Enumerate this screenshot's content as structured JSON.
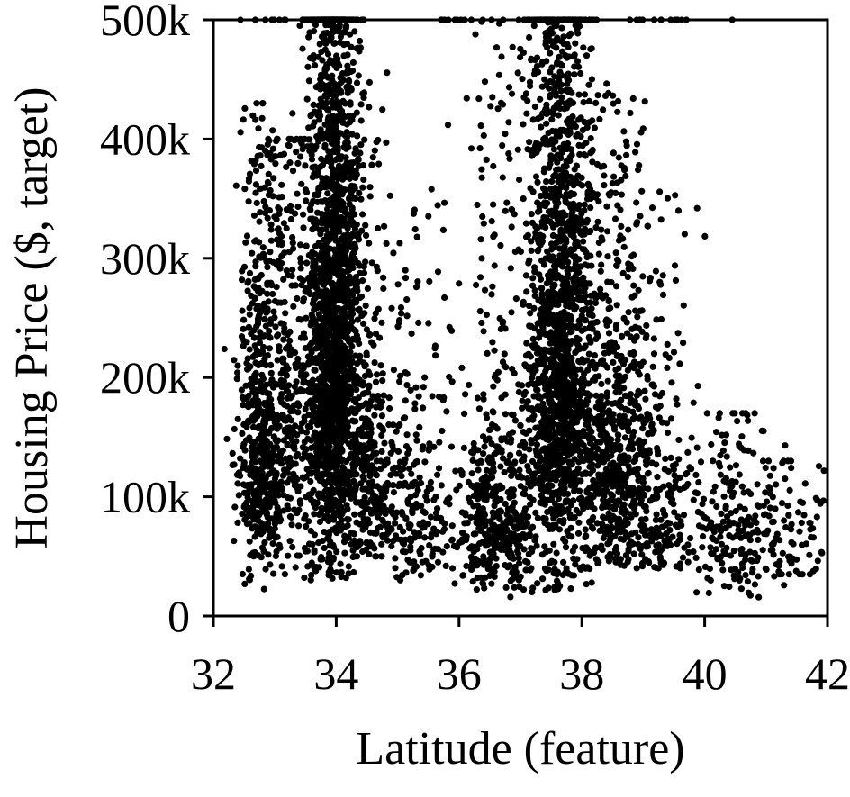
{
  "chart_data": {
    "type": "scatter",
    "title": "",
    "xlabel": "Latitude (feature)",
    "ylabel": "Housing Price ($, target)",
    "xlim": [
      32,
      42
    ],
    "ylim": [
      0,
      500000
    ],
    "x_ticks": [
      32,
      34,
      36,
      38,
      40,
      42
    ],
    "x_tick_labels": [
      "32",
      "34",
      "36",
      "38",
      "40",
      "42"
    ],
    "y_ticks": [
      0,
      100000,
      200000,
      300000,
      400000,
      500000
    ],
    "y_tick_labels": [
      "0",
      "100k",
      "200k",
      "300k",
      "400k",
      "500k"
    ],
    "grid": false,
    "legend": "none",
    "marker_color": "#000000",
    "series": [
      {
        "clusters": [
          {
            "lat_center": 32.75,
            "lat_spread": 0.18,
            "price_min": 20000,
            "price_max": 430000,
            "price_center": 150000,
            "points": 520
          },
          {
            "lat_center": 33.2,
            "lat_spread": 0.25,
            "price_min": 40000,
            "price_max": 400000,
            "price_center": 180000,
            "points": 360
          },
          {
            "lat_center": 33.95,
            "lat_spread": 0.22,
            "price_min": 30000,
            "price_max": 500000,
            "price_center": 250000,
            "points": 1900
          },
          {
            "lat_center": 34.5,
            "lat_spread": 0.2,
            "price_min": 50000,
            "price_max": 460000,
            "price_center": 130000,
            "points": 320
          },
          {
            "lat_center": 35.3,
            "lat_spread": 0.35,
            "price_min": 30000,
            "price_max": 360000,
            "price_center": 90000,
            "points": 260
          },
          {
            "lat_center": 36.6,
            "lat_spread": 0.3,
            "price_min": 15000,
            "price_max": 500000,
            "price_center": 80000,
            "points": 520
          },
          {
            "lat_center": 37.65,
            "lat_spread": 0.28,
            "price_min": 20000,
            "price_max": 500000,
            "price_center": 230000,
            "points": 1700
          },
          {
            "lat_center": 38.55,
            "lat_spread": 0.3,
            "price_min": 30000,
            "price_max": 440000,
            "price_center": 140000,
            "points": 620
          },
          {
            "lat_center": 39.2,
            "lat_spread": 0.35,
            "price_min": 40000,
            "price_max": 360000,
            "price_center": 100000,
            "points": 260
          },
          {
            "lat_center": 40.5,
            "lat_spread": 0.4,
            "price_min": 15000,
            "price_max": 170000,
            "price_center": 75000,
            "points": 220
          },
          {
            "lat_center": 41.5,
            "lat_spread": 0.35,
            "price_min": 35000,
            "price_max": 130000,
            "price_center": 70000,
            "points": 80
          }
        ],
        "capped_value": 500000,
        "capped_points": 200
      }
    ]
  }
}
